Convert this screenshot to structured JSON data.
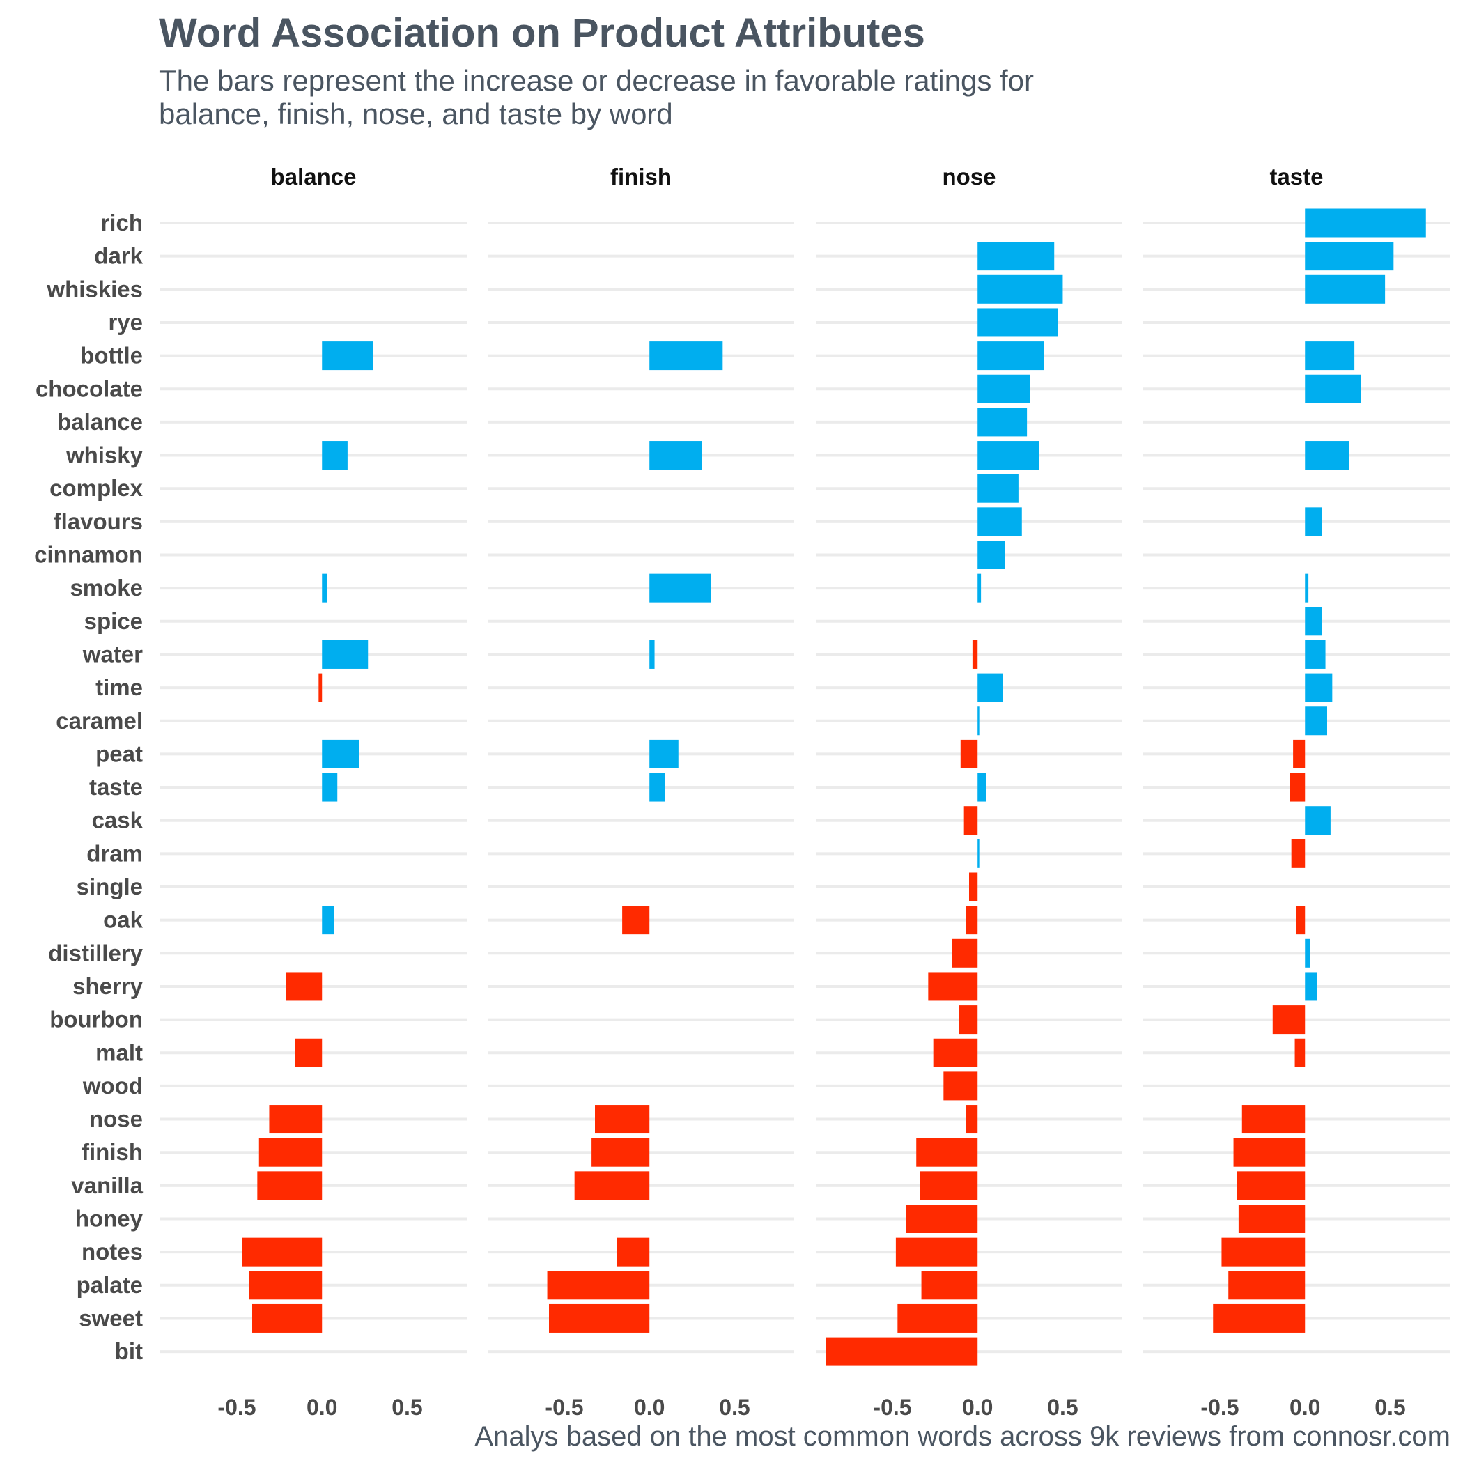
{
  "colors": {
    "positive": "#00aeef",
    "negative": "#ff2a00",
    "grid": "#ebebeb",
    "text": "#4a5561"
  },
  "chart_data": {
    "type": "bar",
    "orientation": "horizontal",
    "title": "Word Association on Product Attributes",
    "subtitle_lines": [
      "The bars represent the increase or decrease in favorable ratings for",
      "balance, finish, nose, and taste by word"
    ],
    "caption": "Analys based on the most common words across 9k reviews from connosr.com",
    "xlim": [
      -0.95,
      0.85
    ],
    "x_ticks": [
      -0.5,
      0.0,
      0.5
    ],
    "x_tick_labels": [
      "-0.5",
      "0.0",
      "0.5"
    ],
    "grid": "horizontal",
    "categories": [
      "rich",
      "dark",
      "whiskies",
      "rye",
      "bottle",
      "chocolate",
      "balance",
      "whisky",
      "complex",
      "flavours",
      "cinnamon",
      "smoke",
      "spice",
      "water",
      "time",
      "caramel",
      "peat",
      "taste",
      "cask",
      "dram",
      "single",
      "oak",
      "distillery",
      "sherry",
      "bourbon",
      "malt",
      "wood",
      "nose",
      "finish",
      "vanilla",
      "honey",
      "notes",
      "palate",
      "sweet",
      "bit"
    ],
    "facets": [
      {
        "name": "balance",
        "values": [
          null,
          null,
          null,
          null,
          0.3,
          null,
          null,
          0.15,
          null,
          null,
          null,
          0.03,
          null,
          0.27,
          -0.02,
          null,
          0.22,
          0.09,
          null,
          null,
          null,
          0.07,
          null,
          -0.21,
          null,
          -0.16,
          null,
          -0.31,
          -0.37,
          -0.38,
          null,
          -0.47,
          -0.43,
          -0.41,
          null
        ]
      },
      {
        "name": "finish",
        "values": [
          null,
          null,
          null,
          null,
          0.43,
          null,
          null,
          0.31,
          null,
          null,
          null,
          0.36,
          null,
          0.03,
          null,
          null,
          0.17,
          0.09,
          null,
          null,
          null,
          -0.16,
          null,
          null,
          null,
          null,
          null,
          -0.32,
          -0.34,
          -0.44,
          null,
          -0.19,
          -0.6,
          -0.59,
          null
        ]
      },
      {
        "name": "nose",
        "values": [
          null,
          0.45,
          0.5,
          0.47,
          0.39,
          0.31,
          0.29,
          0.36,
          0.24,
          0.26,
          0.16,
          0.02,
          null,
          -0.03,
          0.15,
          0.01,
          -0.1,
          0.05,
          -0.08,
          0.01,
          -0.05,
          -0.07,
          -0.15,
          -0.29,
          -0.11,
          -0.26,
          -0.2,
          -0.07,
          -0.36,
          -0.34,
          -0.42,
          -0.48,
          -0.33,
          -0.47,
          -0.89
        ]
      },
      {
        "name": "taste",
        "values": [
          0.71,
          0.52,
          0.47,
          null,
          0.29,
          0.33,
          null,
          0.26,
          null,
          0.1,
          null,
          0.02,
          0.1,
          0.12,
          0.16,
          0.13,
          -0.07,
          -0.09,
          0.15,
          -0.08,
          null,
          -0.05,
          0.03,
          0.07,
          -0.19,
          -0.06,
          null,
          -0.37,
          -0.42,
          -0.4,
          -0.39,
          -0.49,
          -0.45,
          -0.54,
          null
        ]
      }
    ]
  }
}
